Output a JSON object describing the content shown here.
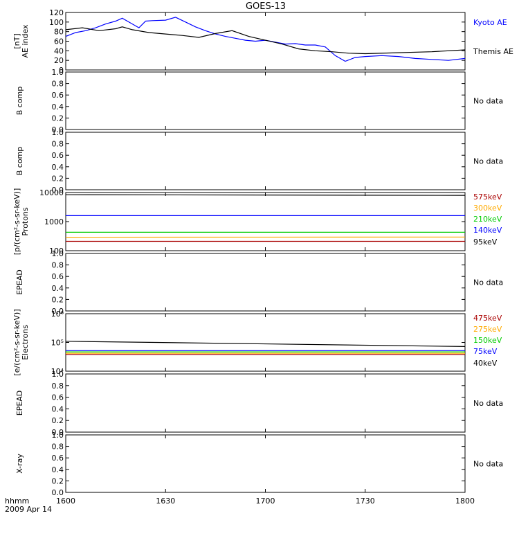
{
  "title": "GOES-13",
  "x_axis": {
    "ticks": [
      "1600",
      "1630",
      "1700",
      "1730",
      "1800"
    ],
    "label_line1": "hhmm",
    "label_line2": "2009 Apr 14"
  },
  "colors": {
    "black": "#000000",
    "blue": "#0000ff",
    "red": "#aa0000",
    "orange": "#ffaa00",
    "green": "#00cc00",
    "cyan": "#00aaff",
    "teal": "#00b4b4"
  },
  "panels": [
    {
      "id": "ae",
      "ylabel": [
        "AE index",
        "[nT]"
      ],
      "ticks": [
        "0",
        "20",
        "40",
        "60",
        "80",
        "100",
        "120"
      ],
      "legend": [
        {
          "text": "Kyoto AE",
          "color": "#0000ff"
        },
        {
          "text": "Themis AE",
          "color": "#000000"
        }
      ]
    },
    {
      "id": "bcomp1",
      "ylabel": [
        "B comp"
      ],
      "ticks": [
        "0.0",
        "0.2",
        "0.4",
        "0.6",
        "0.8",
        "1.0"
      ],
      "nodata": "No data"
    },
    {
      "id": "bcomp2",
      "ylabel": [
        "B comp"
      ],
      "ticks": [
        "0.0",
        "0.2",
        "0.4",
        "0.6",
        "0.8",
        "1.0"
      ],
      "nodata": "No data"
    },
    {
      "id": "protons",
      "ylabel": [
        "Protons",
        "[p/(cm²-s-sr-keV)]"
      ],
      "ticks": [
        "100",
        "1000",
        "10000"
      ],
      "legend": [
        {
          "text": "575keV",
          "color": "#aa0000"
        },
        {
          "text": "300keV",
          "color": "#ffaa00"
        },
        {
          "text": "210keV",
          "color": "#00cc00"
        },
        {
          "text": "140keV",
          "color": "#0000ff"
        },
        {
          "text": "95keV",
          "color": "#000000"
        }
      ]
    },
    {
      "id": "epead1",
      "ylabel": [
        "EPEAD"
      ],
      "ticks": [
        "0.0",
        "0.2",
        "0.4",
        "0.6",
        "0.8",
        "1.0"
      ],
      "nodata": "No data"
    },
    {
      "id": "electrons",
      "ylabel": [
        "Electrons",
        "[e/(cm²-s-sr-keV)]"
      ],
      "ticks": [
        "10⁴",
        "10⁵",
        "10⁶"
      ],
      "legend": [
        {
          "text": "475keV",
          "color": "#aa0000"
        },
        {
          "text": "275keV",
          "color": "#ffaa00"
        },
        {
          "text": "150keV",
          "color": "#00cc00"
        },
        {
          "text": "75keV",
          "color": "#0000ff"
        },
        {
          "text": "40keV",
          "color": "#000000"
        }
      ]
    },
    {
      "id": "epead2",
      "ylabel": [
        "EPEAD"
      ],
      "ticks": [
        "0.0",
        "0.2",
        "0.4",
        "0.6",
        "0.8",
        "1.0"
      ],
      "nodata": "No data"
    },
    {
      "id": "xray",
      "ylabel": [
        "X-ray"
      ],
      "ticks": [
        "0.0",
        "0.2",
        "0.4",
        "0.6",
        "0.8",
        "1.0"
      ],
      "nodata": "No data"
    }
  ],
  "chart_data": {
    "type": "line",
    "title": "GOES-13",
    "x_range": [
      "16:00",
      "18:00"
    ],
    "x_unit": "hhmm",
    "panels": [
      {
        "id": "ae",
        "ylim": [
          0,
          120
        ],
        "series": [
          {
            "name": "Kyoto AE",
            "x": [
              "16:00",
              "16:03",
              "16:06",
              "16:09",
              "16:12",
              "16:15",
              "16:17",
              "16:20",
              "16:22",
              "16:24",
              "16:26",
              "16:30",
              "16:33",
              "16:36",
              "16:39",
              "16:42",
              "16:45",
              "16:48",
              "16:51",
              "16:54",
              "16:57",
              "17:00",
              "17:03",
              "17:06",
              "17:09",
              "17:12",
              "17:15",
              "17:18",
              "17:21",
              "17:24",
              "17:27",
              "17:30",
              "17:35",
              "17:40",
              "17:45",
              "17:50",
              "17:55",
              "18:00"
            ],
            "y": [
              70,
              78,
              82,
              88,
              96,
              102,
              108,
              96,
              88,
              102,
              103,
              104,
              110,
              100,
              90,
              82,
              75,
              70,
              66,
              62,
              60,
              62,
              58,
              54,
              55,
              52,
              52,
              48,
              30,
              18,
              26,
              28,
              30,
              28,
              24,
              22,
              20,
              24
            ]
          },
          {
            "name": "Themis AE",
            "x": [
              "16:00",
              "16:05",
              "16:10",
              "16:15",
              "16:17",
              "16:20",
              "16:25",
              "16:30",
              "16:35",
              "16:40",
              "16:45",
              "16:50",
              "16:55",
              "17:00",
              "17:05",
              "17:10",
              "17:15",
              "17:20",
              "17:25",
              "17:30",
              "17:40",
              "17:50",
              "18:00"
            ],
            "y": [
              84,
              88,
              82,
              86,
              90,
              84,
              78,
              75,
              72,
              68,
              76,
              82,
              70,
              62,
              54,
              44,
              40,
              38,
              35,
              34,
              36,
              38,
              42
            ]
          }
        ]
      },
      {
        "id": "protons",
        "log": true,
        "ylim": [
          100,
          10000
        ],
        "series": [
          {
            "name": "575keV",
            "x": [
              "16:00",
              "18:00"
            ],
            "y": [
              210,
              210
            ]
          },
          {
            "name": "300keV",
            "x": [
              "16:00",
              "18:00"
            ],
            "y": [
              290,
              295
            ]
          },
          {
            "name": "210keV",
            "x": [
              "16:00",
              "18:00"
            ],
            "y": [
              430,
              430
            ]
          },
          {
            "name": "140keV",
            "x": [
              "16:00",
              "18:00"
            ],
            "y": [
              1600,
              1600
            ]
          },
          {
            "name": "95keV",
            "x": [
              "16:00",
              "18:00"
            ],
            "y": [
              8400,
              8000
            ]
          }
        ]
      },
      {
        "id": "electrons",
        "log": true,
        "ylim": [
          10000,
          1000000
        ],
        "series": [
          {
            "name": "475keV",
            "x": [
              "16:00",
              "18:00"
            ],
            "y": [
              38000,
              38000
            ]
          },
          {
            "name": "275keV",
            "x": [
              "16:00",
              "18:00"
            ],
            "y": [
              42000,
              42000
            ]
          },
          {
            "name": "150keV",
            "x": [
              "16:00",
              "18:00"
            ],
            "y": [
              47000,
              47000
            ]
          },
          {
            "name": "75keV",
            "x": [
              "16:00",
              "18:00"
            ],
            "y": [
              52000,
              52000
            ]
          },
          {
            "name": "40keV",
            "x": [
              "16:00",
              "18:00"
            ],
            "y": [
              110000,
              72000
            ]
          }
        ]
      }
    ]
  }
}
